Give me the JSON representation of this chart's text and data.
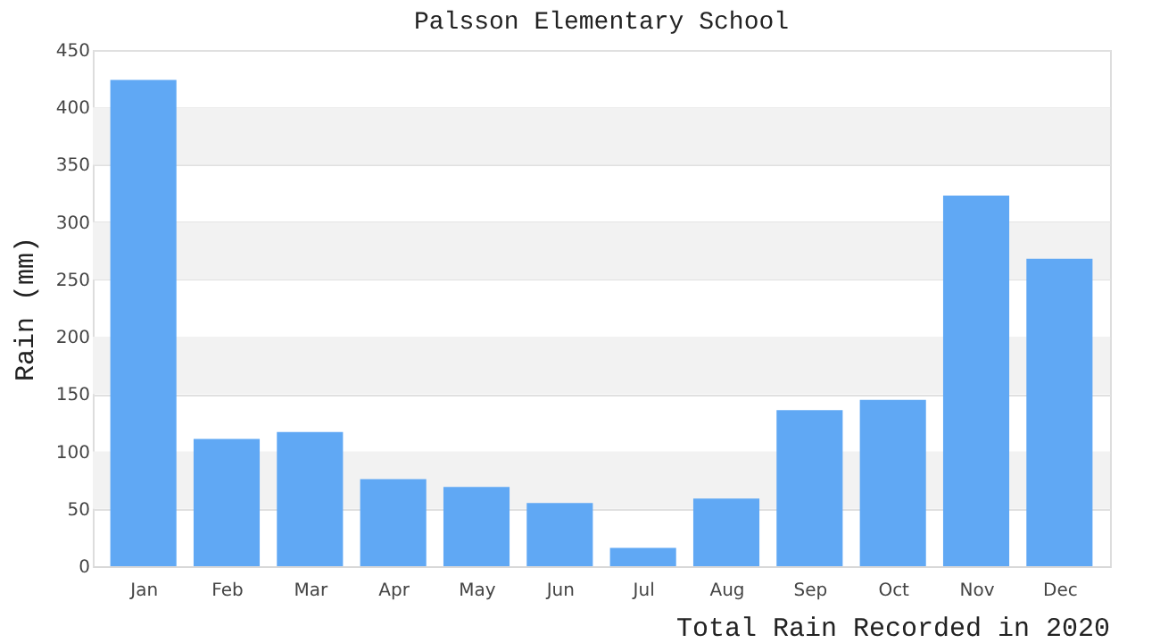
{
  "chart_data": {
    "type": "bar",
    "title": "Palsson Elementary School",
    "ylabel": "Rain (mm)",
    "categories": [
      "Jan",
      "Feb",
      "Mar",
      "Apr",
      "May",
      "Jun",
      "Jul",
      "Aug",
      "Sep",
      "Oct",
      "Nov",
      "Dec"
    ],
    "values": [
      424,
      111,
      117,
      76,
      69,
      55,
      16,
      59,
      136,
      145,
      323,
      268
    ],
    "color": "#60a8f4",
    "ylim": [
      0,
      450
    ],
    "yticks": [
      0,
      50,
      100,
      150,
      200,
      250,
      300,
      350,
      400,
      450
    ],
    "grid": "y",
    "bands": [
      {
        "axis": "y",
        "from": 50,
        "to": 100,
        "label": null,
        "color": "#f2f2f2"
      },
      {
        "axis": "y",
        "from": 150,
        "to": 200,
        "label": null,
        "color": "#f2f2f2"
      },
      {
        "axis": "y",
        "from": 250,
        "to": 300,
        "label": null,
        "color": "#f2f2f2"
      },
      {
        "axis": "y",
        "from": 350,
        "to": 400,
        "label": null,
        "color": "#f2f2f2"
      }
    ],
    "annotations": [
      "Total Rain Recorded in 2020"
    ]
  }
}
